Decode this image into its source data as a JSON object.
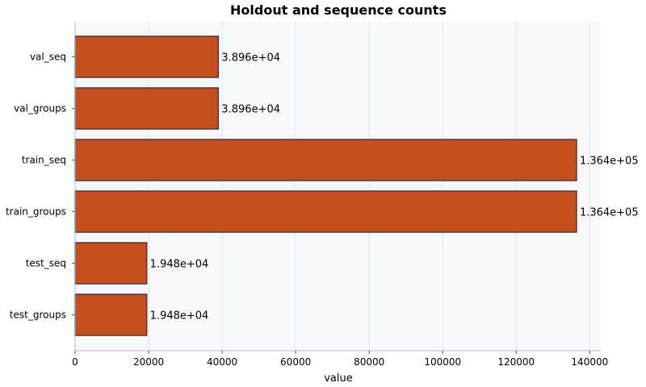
{
  "chart_data": {
    "type": "bar",
    "orientation": "horizontal",
    "title": "Holdout and sequence counts",
    "xlabel": "value",
    "ylabel": "",
    "categories": [
      "val_seq",
      "val_groups",
      "train_seq",
      "train_groups",
      "test_seq",
      "test_groups"
    ],
    "values": [
      38960,
      38960,
      136400,
      136400,
      19480,
      19480
    ],
    "data_labels": [
      "3.896e+04",
      "3.896e+04",
      "1.364e+05",
      "1.364e+05",
      "1.948e+04",
      "1.948e+04"
    ],
    "xlim": [
      0,
      143000
    ],
    "xticks": [
      0,
      20000,
      40000,
      60000,
      80000,
      100000,
      120000,
      140000
    ],
    "xtick_labels": [
      "0",
      "20000",
      "40000",
      "60000",
      "80000",
      "100000",
      "120000",
      "140000"
    ],
    "grid": "vertical",
    "colors": {
      "bar_fill": "#c44e1d",
      "bar_edge": "#3a3f4a",
      "plot_background": "#f7f9fc",
      "grid": "#dde3ec",
      "axis": "#b0bccb"
    }
  }
}
